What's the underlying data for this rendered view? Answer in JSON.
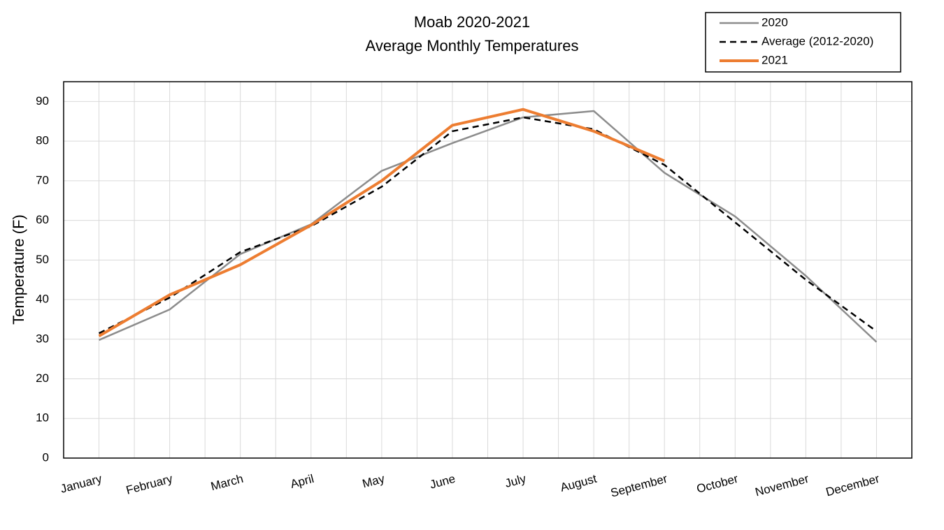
{
  "chart_data": {
    "type": "line",
    "title": "Moab 2020-2021",
    "subtitle": "Average Monthly Temperatures",
    "y_label": "Temperature (F)",
    "categories": [
      "January",
      "February",
      "March",
      "April",
      "May",
      "June",
      "July",
      "August",
      "September",
      "October",
      "November",
      "December"
    ],
    "series": [
      {
        "name": "2020",
        "color": "#8c8c8c",
        "linestyle": "solid",
        "linewidth": 2.5,
        "values": [
          29.8,
          37.5,
          51.5,
          59,
          72.5,
          79.5,
          86,
          87.6,
          72,
          61,
          46,
          29.3
        ]
      },
      {
        "name": "Average (2012-2020)",
        "color": "#000000",
        "linestyle": "dashed",
        "linewidth": 2.5,
        "values": [
          31.5,
          40.5,
          52,
          58.5,
          68.5,
          82.5,
          86,
          83,
          74,
          59.5,
          45,
          32
        ]
      },
      {
        "name": "2021",
        "color": "#ed7d31",
        "linestyle": "solid",
        "linewidth": 4,
        "values": [
          30.8,
          41.2,
          48.8,
          58.8,
          70,
          84,
          88,
          82.5,
          75,
          null,
          null,
          null
        ]
      }
    ],
    "ylim": [
      0,
      95
    ],
    "yticks": [
      0,
      10,
      20,
      30,
      40,
      50,
      60,
      70,
      80,
      90
    ],
    "grid": true,
    "legend": "top-right"
  }
}
